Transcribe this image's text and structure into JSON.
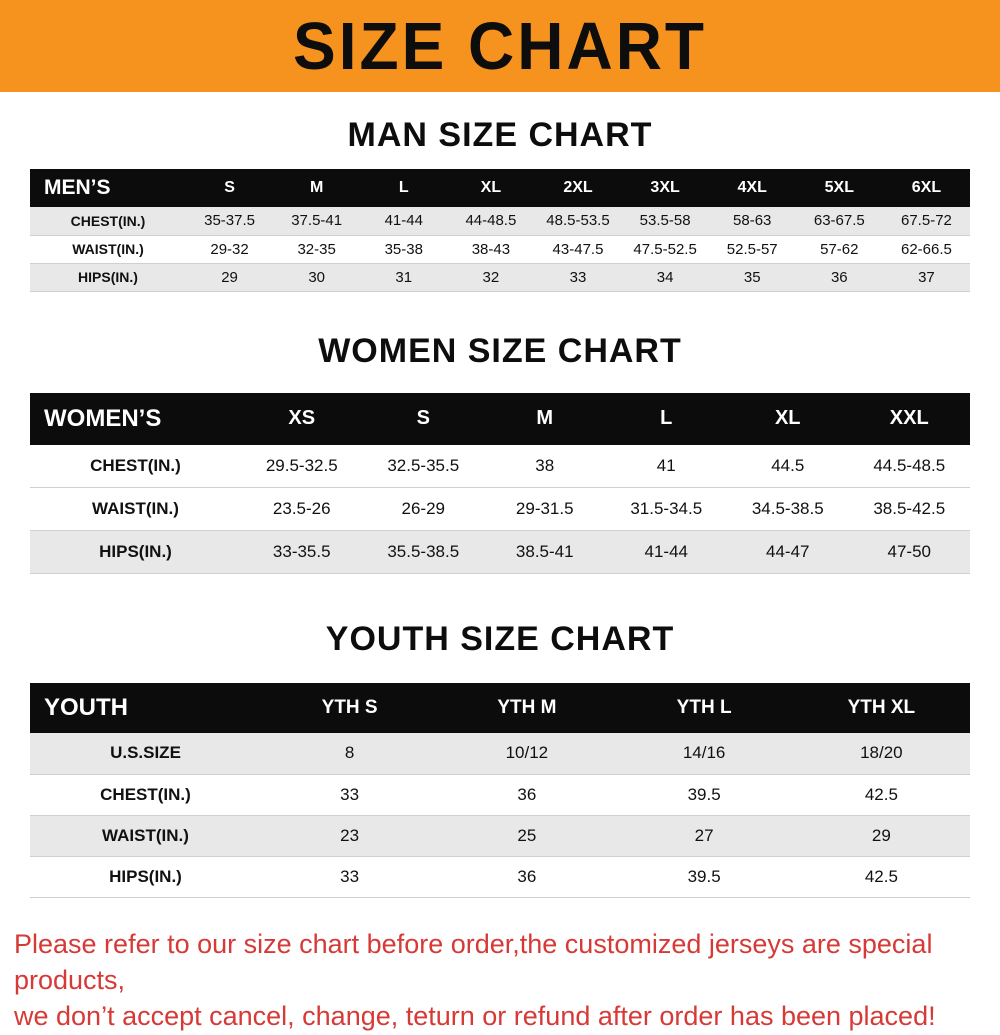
{
  "banner": {
    "title": "SIZE CHART",
    "background_color": "#F6921E",
    "text_color": "#0d0d0d"
  },
  "sections": {
    "men_heading": "MAN SIZE CHART",
    "women_heading": "WOMEN SIZE CHART",
    "youth_heading": "YOUTH SIZE CHART"
  },
  "men_table": {
    "corner_label": "MEN’S",
    "columns": [
      "S",
      "M",
      "L",
      "XL",
      "2XL",
      "3XL",
      "4XL",
      "5XL",
      "6XL"
    ],
    "rows": [
      {
        "label": "CHEST(IN.)",
        "values": [
          "35-37.5",
          "37.5-41",
          "41-44",
          "44-48.5",
          "48.5-53.5",
          "53.5-58",
          "58-63",
          "63-67.5",
          "67.5-72"
        ]
      },
      {
        "label": "WAIST(IN.)",
        "values": [
          "29-32",
          "32-35",
          "35-38",
          "38-43",
          "43-47.5",
          "47.5-52.5",
          "52.5-57",
          "57-62",
          "62-66.5"
        ]
      },
      {
        "label": "HIPS(IN.)",
        "values": [
          "29",
          "30",
          "31",
          "32",
          "33",
          "34",
          "35",
          "36",
          "37"
        ]
      }
    ]
  },
  "women_table": {
    "corner_label": "WOMEN’S",
    "columns": [
      "XS",
      "S",
      "M",
      "L",
      "XL",
      "XXL"
    ],
    "rows": [
      {
        "label": "CHEST(IN.)",
        "values": [
          "29.5-32.5",
          "32.5-35.5",
          "38",
          "41",
          "44.5",
          "44.5-48.5"
        ]
      },
      {
        "label": "WAIST(IN.)",
        "values": [
          "23.5-26",
          "26-29",
          "29-31.5",
          "31.5-34.5",
          "34.5-38.5",
          "38.5-42.5"
        ]
      },
      {
        "label": "HIPS(IN.)",
        "values": [
          "33-35.5",
          "35.5-38.5",
          "38.5-41",
          "41-44",
          "44-47",
          "47-50"
        ]
      }
    ]
  },
  "youth_table": {
    "corner_label": "YOUTH",
    "columns": [
      "YTH S",
      "YTH M",
      "YTH L",
      "YTH XL"
    ],
    "rows": [
      {
        "label": "U.S.SIZE",
        "values": [
          "8",
          "10/12",
          "14/16",
          "18/20"
        ]
      },
      {
        "label": "CHEST(IN.)",
        "values": [
          "33",
          "36",
          "39.5",
          "42.5"
        ]
      },
      {
        "label": "WAIST(IN.)",
        "values": [
          "23",
          "25",
          "27",
          "29"
        ]
      },
      {
        "label": "HIPS(IN.)",
        "values": [
          "33",
          "36",
          "39.5",
          "42.5"
        ]
      }
    ]
  },
  "footer": {
    "line1": "Please refer to our size chart before order,the customized jerseys are special products,",
    "line2": "we don’t accept cancel, change, teturn or refund after order has been placed!",
    "text_color": "#d63a36"
  }
}
